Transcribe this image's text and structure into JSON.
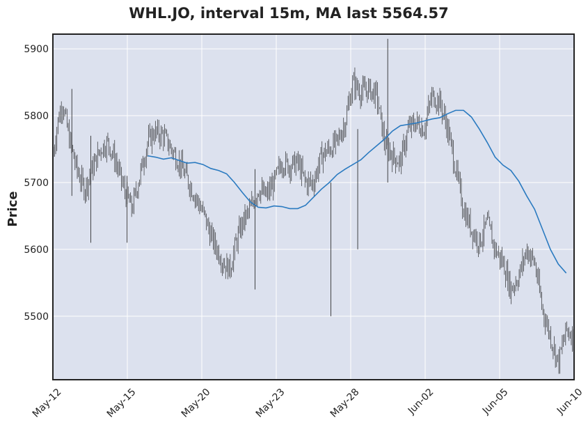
{
  "chart_data": {
    "type": "candlestick",
    "title": "WHL.JO, interval 15m, MA last 5564.57",
    "ylabel": "Price",
    "xlabel": "",
    "ylim": [
      5405,
      5922
    ],
    "yticks": [
      5500,
      5600,
      5700,
      5800,
      5900
    ],
    "grid": true,
    "xticks": [
      "May-12",
      "May-15",
      "May-20",
      "May-23",
      "May-28",
      "Jun-02",
      "Jun-05",
      "Jun-10"
    ],
    "colors": {
      "plot_bg": "#dce1ee",
      "grid": "#ffffff",
      "candle": "#1a1a1a",
      "ma": "#2a7ac0"
    },
    "price_path": [
      [
        0,
        5740
      ],
      [
        0.3,
        5790
      ],
      [
        0.6,
        5820
      ],
      [
        1.0,
        5770
      ],
      [
        1.5,
        5720
      ],
      [
        2.0,
        5690
      ],
      [
        2.5,
        5720
      ],
      [
        3.0,
        5750
      ],
      [
        3.5,
        5760
      ],
      [
        4.0,
        5730
      ],
      [
        4.5,
        5690
      ],
      [
        5.0,
        5660
      ],
      [
        5.4,
        5700
      ],
      [
        6.0,
        5760
      ],
      [
        6.4,
        5775
      ],
      [
        7.0,
        5770
      ],
      [
        7.5,
        5750
      ],
      [
        8.0,
        5730
      ],
      [
        8.6,
        5700
      ],
      [
        9.0,
        5680
      ],
      [
        9.6,
        5650
      ],
      [
        10.0,
        5620
      ],
      [
        10.4,
        5600
      ],
      [
        10.8,
        5580
      ],
      [
        11.2,
        5570
      ],
      [
        11.6,
        5610
      ],
      [
        12.0,
        5640
      ],
      [
        12.5,
        5660
      ],
      [
        13.0,
        5690
      ],
      [
        13.5,
        5680
      ],
      [
        14.0,
        5700
      ],
      [
        14.5,
        5730
      ],
      [
        15.0,
        5725
      ],
      [
        15.5,
        5730
      ],
      [
        16.0,
        5700
      ],
      [
        16.5,
        5700
      ],
      [
        17.0,
        5740
      ],
      [
        17.5,
        5750
      ],
      [
        18.0,
        5760
      ],
      [
        18.5,
        5790
      ],
      [
        19.0,
        5850
      ],
      [
        19.5,
        5835
      ],
      [
        20.0,
        5840
      ],
      [
        20.5,
        5830
      ],
      [
        21.0,
        5760
      ],
      [
        21.5,
        5740
      ],
      [
        22.0,
        5730
      ],
      [
        22.5,
        5780
      ],
      [
        23.0,
        5790
      ],
      [
        23.5,
        5780
      ],
      [
        24.0,
        5830
      ],
      [
        24.5,
        5820
      ],
      [
        25.0,
        5780
      ],
      [
        25.5,
        5720
      ],
      [
        26.0,
        5660
      ],
      [
        26.5,
        5630
      ],
      [
        27.0,
        5610
      ],
      [
        27.5,
        5640
      ],
      [
        28.0,
        5600
      ],
      [
        28.5,
        5580
      ],
      [
        29.0,
        5540
      ],
      [
        29.5,
        5560
      ],
      [
        30.0,
        5600
      ],
      [
        30.5,
        5580
      ],
      [
        31.0,
        5510
      ],
      [
        31.5,
        5470
      ],
      [
        32.0,
        5430
      ],
      [
        32.5,
        5480
      ],
      [
        33.0,
        5470
      ]
    ],
    "wicks": [
      {
        "x": 2.4,
        "low": 5610,
        "high": 5770
      },
      {
        "x": 4.7,
        "low": 5610,
        "high": 5710
      },
      {
        "x": 12.8,
        "low": 5540,
        "high": 5720
      },
      {
        "x": 17.6,
        "low": 5500,
        "high": 5700
      },
      {
        "x": 19.3,
        "low": 5600,
        "high": 5780
      },
      {
        "x": 1.2,
        "low": 5680,
        "high": 5840
      },
      {
        "x": 21.2,
        "low": 5700,
        "high": 5915
      }
    ],
    "ma": [
      [
        6.0,
        5740
      ],
      [
        6.5,
        5738
      ],
      [
        7.0,
        5735
      ],
      [
        7.5,
        5737
      ],
      [
        8.0,
        5733
      ],
      [
        8.5,
        5729
      ],
      [
        9.0,
        5730
      ],
      [
        9.5,
        5727
      ],
      [
        10.0,
        5721
      ],
      [
        10.5,
        5718
      ],
      [
        11.0,
        5713
      ],
      [
        11.5,
        5700
      ],
      [
        12.0,
        5685
      ],
      [
        12.5,
        5671
      ],
      [
        13.0,
        5663
      ],
      [
        13.5,
        5662
      ],
      [
        14.0,
        5665
      ],
      [
        14.5,
        5664
      ],
      [
        15.0,
        5661
      ],
      [
        15.5,
        5661
      ],
      [
        16.0,
        5666
      ],
      [
        16.5,
        5678
      ],
      [
        17.0,
        5690
      ],
      [
        17.5,
        5700
      ],
      [
        18.0,
        5712
      ],
      [
        18.5,
        5720
      ],
      [
        19.0,
        5727
      ],
      [
        19.5,
        5734
      ],
      [
        20.0,
        5745
      ],
      [
        20.5,
        5755
      ],
      [
        21.0,
        5765
      ],
      [
        21.5,
        5777
      ],
      [
        22.0,
        5785
      ],
      [
        22.5,
        5787
      ],
      [
        23.0,
        5789
      ],
      [
        23.5,
        5792
      ],
      [
        24.0,
        5795
      ],
      [
        24.5,
        5797
      ],
      [
        25.0,
        5803
      ],
      [
        25.5,
        5808
      ],
      [
        26.0,
        5808
      ],
      [
        26.5,
        5798
      ],
      [
        27.0,
        5780
      ],
      [
        27.5,
        5760
      ],
      [
        28.0,
        5738
      ],
      [
        28.5,
        5726
      ],
      [
        29.0,
        5718
      ],
      [
        29.5,
        5702
      ],
      [
        30.0,
        5680
      ],
      [
        30.5,
        5660
      ],
      [
        31.0,
        5630
      ],
      [
        31.5,
        5600
      ],
      [
        32.0,
        5578
      ],
      [
        32.5,
        5564.57
      ]
    ],
    "x_domain": [
      0,
      33
    ]
  }
}
